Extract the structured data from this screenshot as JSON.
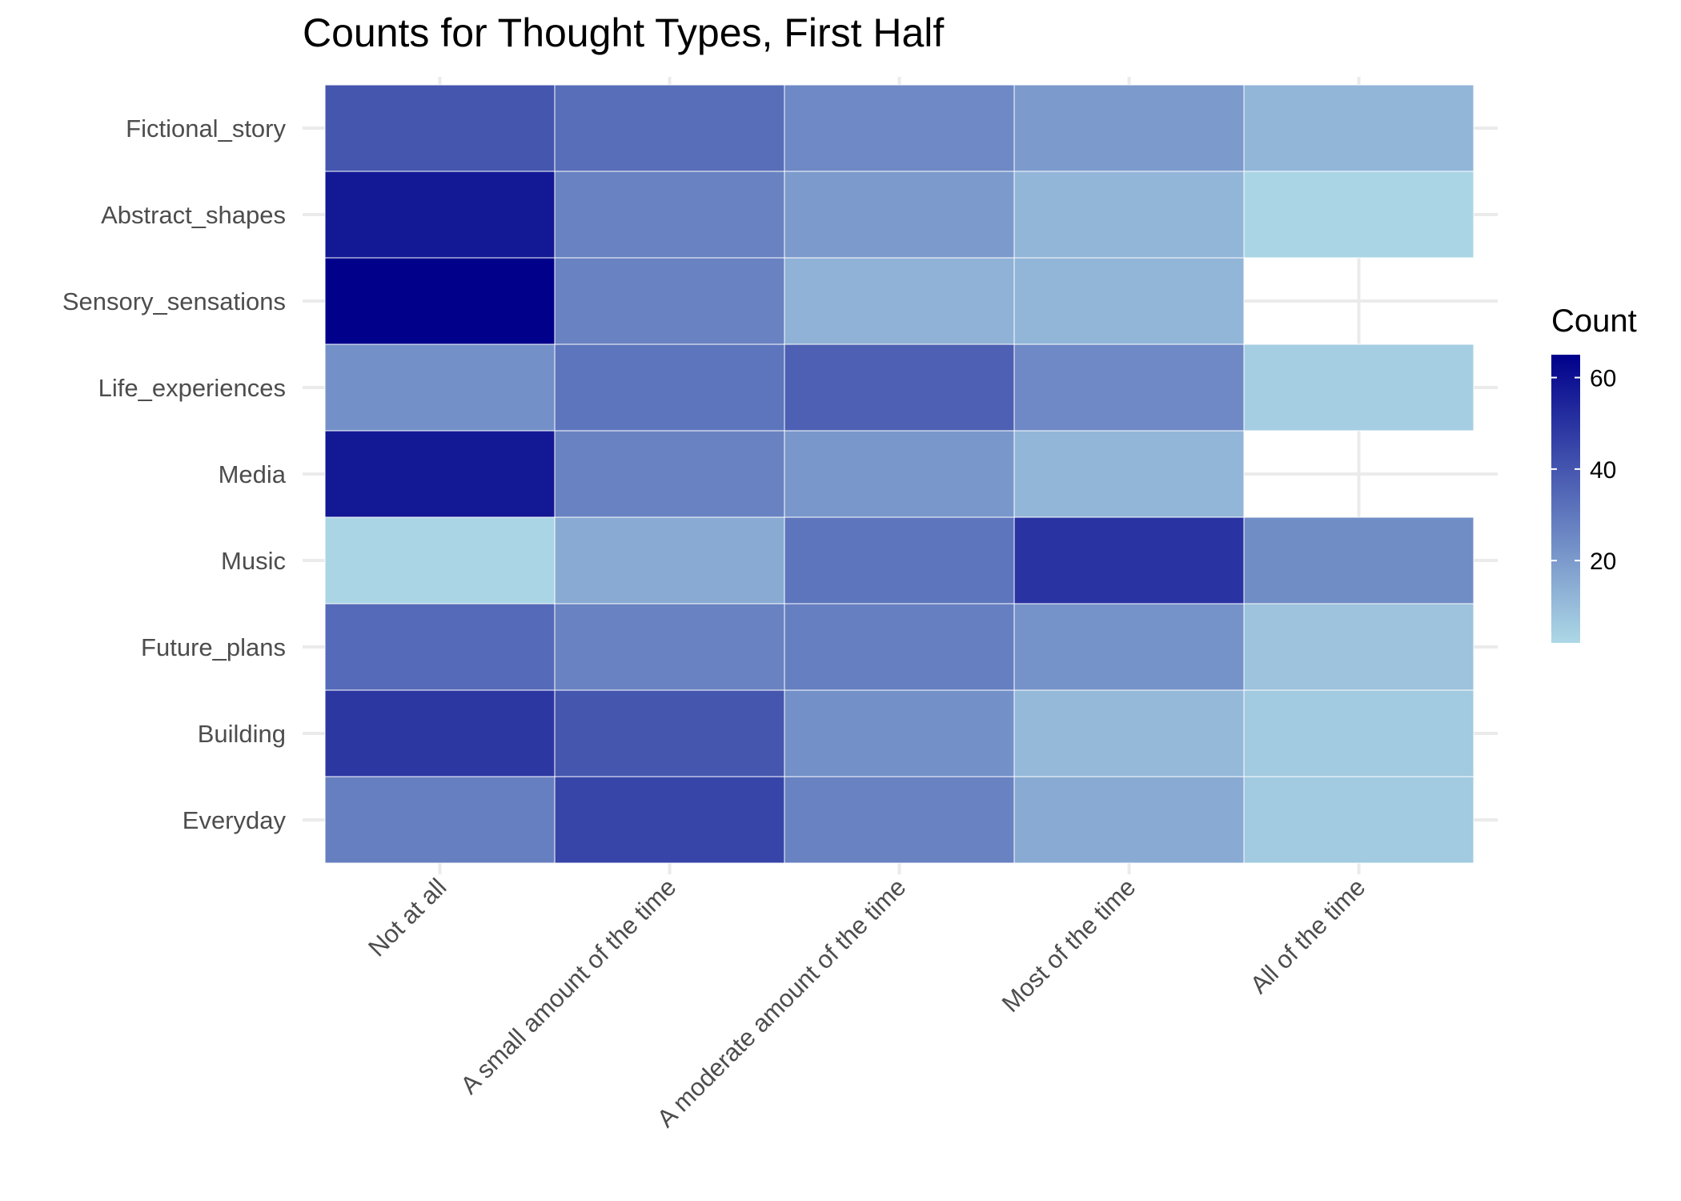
{
  "chart_data": {
    "type": "heatmap",
    "title": "Counts for Thought Types, First Half",
    "xlabel": "",
    "ylabel": "",
    "x_categories": [
      "Not at all",
      "A small amount of the time",
      "A moderate amount of the time",
      "Most of the time",
      "All of the time"
    ],
    "y_categories": [
      "Fictional_story",
      "Abstract_shapes",
      "Sensory_sensations",
      "Life_experiences",
      "Media",
      "Music",
      "Future_plans",
      "Building",
      "Everyday"
    ],
    "values": [
      [
        40,
        33,
        25,
        20,
        12
      ],
      [
        58,
        27,
        20,
        12,
        3
      ],
      [
        65,
        27,
        13,
        12,
        null
      ],
      [
        23,
        31,
        37,
        25,
        5
      ],
      [
        58,
        27,
        21,
        12,
        null
      ],
      [
        3,
        15,
        31,
        50,
        24
      ],
      [
        34,
        27,
        28,
        22,
        8
      ],
      [
        49,
        40,
        23,
        11,
        6
      ],
      [
        28,
        45,
        27,
        15,
        6
      ]
    ],
    "legend": {
      "title": "Count",
      "ticks": [
        20,
        40,
        60
      ],
      "min": 2,
      "max": 65,
      "low_color": "#ADD8E6",
      "high_color": "#00008B",
      "position": "right"
    },
    "grid": true
  }
}
